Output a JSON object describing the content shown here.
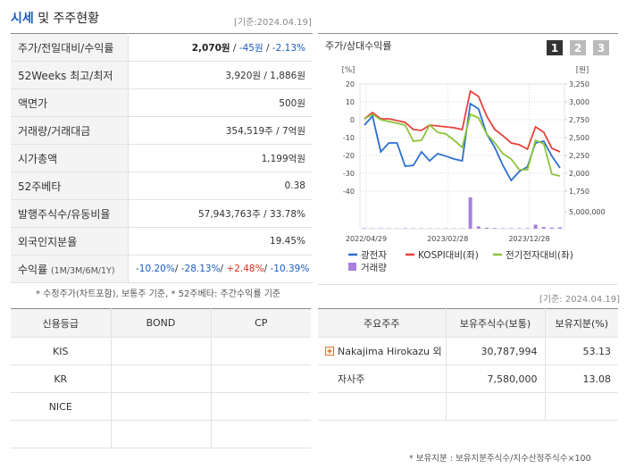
{
  "header": {
    "title_main": "시세",
    "title_rest": " 및 주주현황",
    "date": "[기준:2024.04.19]"
  },
  "quote_table": {
    "rows": [
      {
        "label": "주가/전일대비/수익률",
        "parts": [
          {
            "text": "2,070원",
            "weight": "bold"
          },
          {
            "text": " / "
          },
          {
            "text": "-45원",
            "color": "#1b5bc2"
          },
          {
            "text": " / "
          },
          {
            "text": "-2.13%",
            "color": "#1b5bc2"
          }
        ]
      },
      {
        "label": "52Weeks 최고/최저",
        "parts": [
          {
            "text": "3,920원 / 1,886원"
          }
        ]
      },
      {
        "label": "액면가",
        "parts": [
          {
            "text": "500원"
          }
        ]
      },
      {
        "label": "거래량/거래대금",
        "parts": [
          {
            "text": "354,519주 / 7억원"
          }
        ]
      },
      {
        "label": "시가총액",
        "parts": [
          {
            "text": "1,199억원"
          }
        ]
      },
      {
        "label": "52주베타",
        "parts": [
          {
            "text": "0.38"
          }
        ]
      },
      {
        "label": "발행주식수/유동비율",
        "parts": [
          {
            "text": "57,943,763주 / 33.78%"
          }
        ]
      },
      {
        "label": "외국인지분율",
        "parts": [
          {
            "text": "19.45%"
          }
        ]
      },
      {
        "label": "수익률",
        "label_note": "(1M/3M/6M/1Y)",
        "parts": [
          {
            "text": "-10.20%",
            "color": "#1b5bc2"
          },
          {
            "text": "/ "
          },
          {
            "text": "-28.13%",
            "color": "#1b5bc2"
          },
          {
            "text": "/ "
          },
          {
            "text": "+2.48%",
            "color": "#e0301e"
          },
          {
            "text": "/ "
          },
          {
            "text": "-10.39%",
            "color": "#1b5bc2"
          }
        ]
      }
    ]
  },
  "quote_note": "* 수정주가(차트포함), 보통주 기준, * 52주베타: 주간수익률 기준",
  "chart_tabs": [
    "1",
    "2",
    "3"
  ],
  "chart_data": {
    "type": "line",
    "title": "주가/상대수익률",
    "ylabel": "[%]",
    "y2label": "[원]",
    "ylim": [
      -40,
      20
    ],
    "yticks": [
      20,
      10,
      0,
      -10,
      -20,
      -30,
      -40
    ],
    "y2lim": [
      1750,
      3250
    ],
    "y2ticks": [
      {
        "value": 3250,
        "label": "3,250"
      },
      {
        "value": 3000,
        "label": "3,000"
      },
      {
        "value": 2750,
        "label": "2,750"
      },
      {
        "value": 2500,
        "label": "2,500"
      },
      {
        "value": 2250,
        "label": "2,250"
      },
      {
        "value": 2000,
        "label": "2,000"
      },
      {
        "value": 1750,
        "label": "1,750"
      }
    ],
    "volume_lim": [
      0,
      10000000
    ],
    "volume_ticks": [
      {
        "value": 5000000,
        "label": "5,000,000"
      }
    ],
    "xticks": [
      "2022/04/29",
      "2023/02/28",
      "2023/12/28"
    ],
    "series": [
      {
        "name": "광전자",
        "color": "#2d6fd6",
        "axis": "y2",
        "values": [
          2675,
          2800,
          2300,
          2425,
          2425,
          2100,
          2110,
          2300,
          2175,
          2275,
          2240,
          2200,
          2175,
          2975,
          2900,
          2550,
          2360,
          2110,
          1900,
          2025,
          2090,
          2425,
          2450,
          2240,
          2075
        ]
      },
      {
        "name": "KOSPI대비(좌)",
        "color": "#e8413b",
        "values": [
          0.5,
          4,
          0.5,
          0.5,
          -0.5,
          -1.5,
          -5.5,
          -6,
          -3,
          -3.5,
          -4,
          -4.5,
          -5.5,
          16,
          13,
          2,
          -5.5,
          -9,
          -13,
          -14,
          -16.5,
          -4,
          -7,
          -16,
          -18
        ]
      },
      {
        "name": "전기전자대비(좌)",
        "color": "#8cc43a",
        "values": [
          0.5,
          3,
          0,
          -1,
          -2,
          -3,
          -12,
          -11.5,
          -3,
          -7,
          -8,
          -11.5,
          -15.5,
          3,
          1,
          -8,
          -13,
          -19,
          -22,
          -28,
          -28,
          -11.5,
          -13.5,
          -30.5,
          -31.5
        ]
      },
      {
        "name": "거래량",
        "color": "#a77ee0",
        "type": "bar",
        "axis": "volume",
        "values": [
          150000,
          100000,
          120000,
          100000,
          80000,
          150000,
          100000,
          100000,
          90000,
          80000,
          100000,
          80000,
          100000,
          9200000,
          700000,
          300000,
          200000,
          150000,
          150000,
          150000,
          150000,
          1200000,
          500000,
          300000,
          400000
        ]
      }
    ]
  },
  "rating_table": {
    "header": [
      "신용등급",
      "BOND",
      "CP"
    ],
    "rows": [
      [
        "KIS",
        "",
        ""
      ],
      [
        "KR",
        "",
        ""
      ],
      [
        "NICE",
        "",
        ""
      ]
    ]
  },
  "holders": {
    "date": "[기준: 2024.04.19]",
    "header": [
      "주요주주",
      "보유주식수(보통)",
      "보유지분(%)"
    ],
    "rows": [
      [
        "Nakajima Hirokazu 외 …",
        "30,787,994",
        "53.13"
      ],
      [
        "자사주",
        "7,580,000",
        "13.08"
      ]
    ],
    "note": "* 보유지분 : 보유지분주식수/지수산정주식수×100"
  }
}
